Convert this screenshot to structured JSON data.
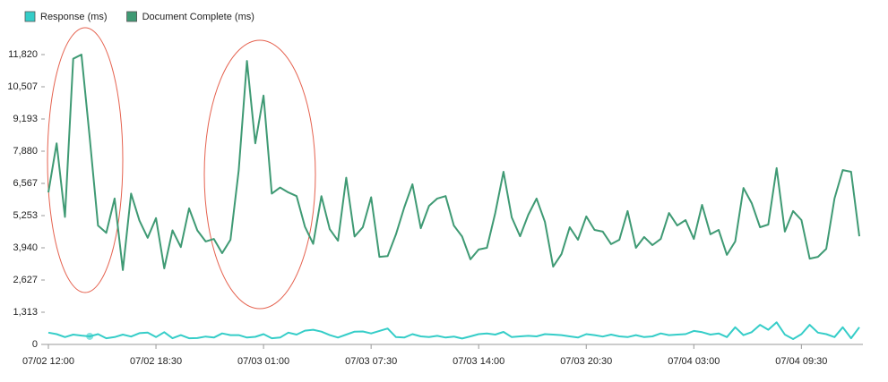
{
  "chart_data": {
    "type": "line",
    "categories": [
      "07/02 12:00",
      null,
      null,
      null,
      null,
      null,
      null,
      null,
      null,
      null,
      null,
      null,
      null,
      "07/02 18:30",
      null,
      null,
      null,
      null,
      null,
      null,
      null,
      null,
      null,
      null,
      null,
      null,
      "07/03 01:00",
      null,
      null,
      null,
      null,
      null,
      null,
      null,
      null,
      null,
      null,
      null,
      null,
      "07/03 07:30",
      null,
      null,
      null,
      null,
      null,
      null,
      null,
      null,
      null,
      null,
      null,
      null,
      "07/03 14:00",
      null,
      null,
      null,
      null,
      null,
      null,
      null,
      null,
      null,
      null,
      null,
      null,
      "07/03 20:30",
      null,
      null,
      null,
      null,
      null,
      null,
      null,
      null,
      null,
      null,
      null,
      null,
      "07/04 03:00",
      null,
      null,
      null,
      null,
      null,
      null,
      null,
      null,
      null,
      null,
      null,
      null,
      "07/04 09:30",
      null,
      null,
      null,
      null,
      null,
      null,
      null
    ],
    "series": [
      {
        "name": "Response (ms)",
        "color": "#35cdc8",
        "values": [
          480,
          420,
          300,
          400,
          360,
          330,
          420,
          250,
          300,
          400,
          320,
          460,
          480,
          300,
          500,
          250,
          380,
          250,
          260,
          320,
          280,
          450,
          380,
          380,
          280,
          310,
          420,
          250,
          280,
          480,
          400,
          560,
          600,
          520,
          380,
          280,
          400,
          520,
          530,
          450,
          550,
          650,
          300,
          280,
          420,
          330,
          300,
          350,
          280,
          320,
          240,
          330,
          420,
          450,
          400,
          510,
          300,
          330,
          350,
          330,
          420,
          400,
          380,
          330,
          280,
          420,
          380,
          320,
          400,
          330,
          300,
          380,
          300,
          330,
          450,
          380,
          400,
          420,
          550,
          500,
          400,
          450,
          300,
          700,
          380,
          500,
          800,
          600,
          900,
          400,
          220,
          420,
          800,
          480,
          420,
          300,
          700,
          250,
          700
        ]
      },
      {
        "name": "Document Complete (ms)",
        "color": "#3f9a74",
        "values": [
          6200,
          8200,
          5200,
          11650,
          11820,
          8400,
          4850,
          4550,
          5950,
          3030,
          6150,
          5050,
          4350,
          5150,
          3100,
          4650,
          3970,
          5550,
          4650,
          4200,
          4300,
          3720,
          4270,
          7100,
          11560,
          8200,
          10150,
          6150,
          6400,
          6200,
          6050,
          4800,
          4100,
          6050,
          4700,
          4230,
          6800,
          4400,
          4780,
          6000,
          3570,
          3600,
          4490,
          5580,
          6530,
          4740,
          5650,
          5950,
          6050,
          4850,
          4400,
          3470,
          3870,
          3940,
          5360,
          7040,
          5180,
          4410,
          5290,
          5950,
          5000,
          3170,
          3680,
          4780,
          4270,
          5220,
          4670,
          4600,
          4090,
          4270,
          5440,
          3940,
          4380,
          4050,
          4300,
          5360,
          4850,
          5070,
          4300,
          5690,
          4490,
          4670,
          3650,
          4200,
          6380,
          5760,
          4780,
          4890,
          7190,
          4600,
          5440,
          5070,
          3500,
          3570,
          3900,
          5950,
          7110,
          7040,
          4410
        ]
      }
    ],
    "ylim": [
      0,
      11820
    ],
    "yticks": [
      0,
      {
        "value": 1313,
        "label": "1,313"
      },
      {
        "value": 2627,
        "label": "2,627"
      },
      {
        "value": 3940,
        "label": "3,940"
      },
      {
        "value": 5253,
        "label": "5,253"
      },
      {
        "value": 6567,
        "label": "6,567"
      },
      {
        "value": 7880,
        "label": "7,880"
      },
      {
        "value": 9193,
        "label": "9,193"
      },
      {
        "value": 10507,
        "label": "10,507"
      },
      {
        "value": 11820,
        "label": "11,820"
      }
    ],
    "highlight": {
      "series": 0,
      "index": 5
    }
  }
}
